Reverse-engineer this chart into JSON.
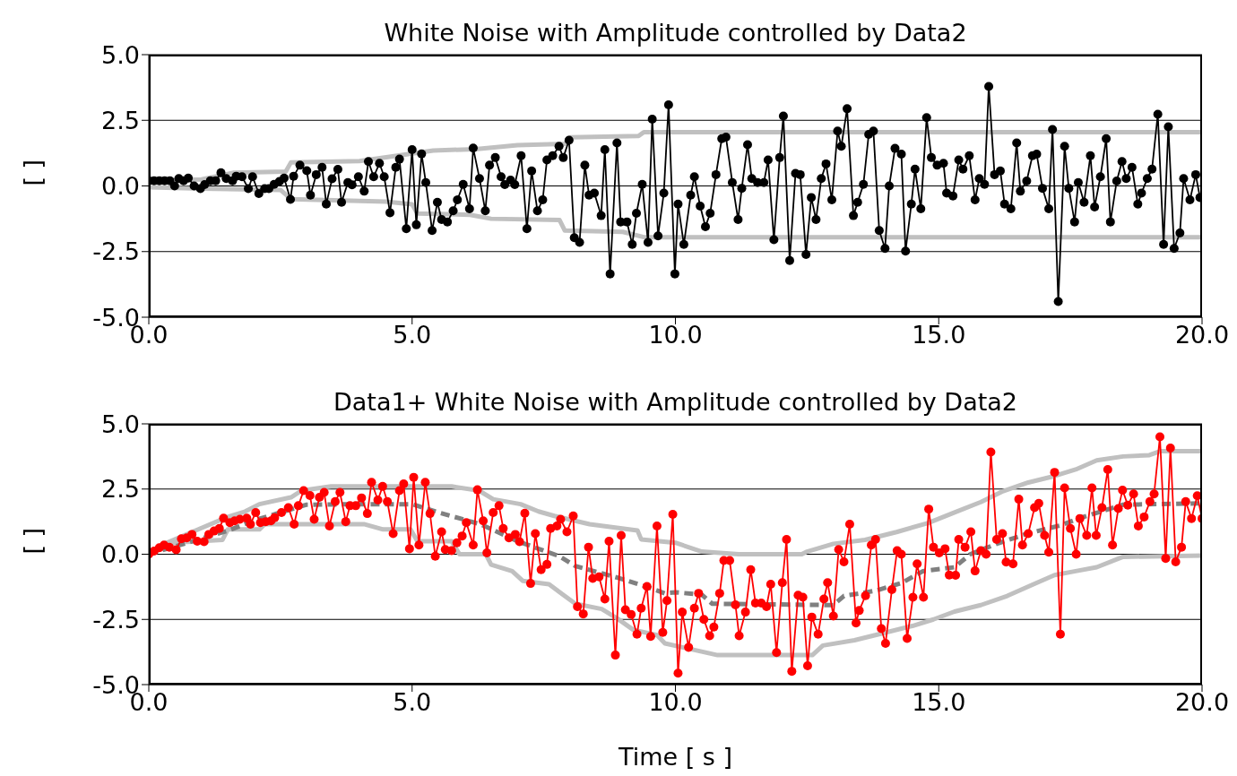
{
  "chart_data": [
    {
      "type": "line",
      "title": "White Noise with Amplitude controlled by Data2",
      "ylabel": "[ ]",
      "xlim": [
        0,
        20
      ],
      "xticks": [
        {
          "value": 0,
          "label": "0.0"
        },
        {
          "value": 5,
          "label": "5.0"
        },
        {
          "value": 10,
          "label": "10.0"
        },
        {
          "value": 15,
          "label": "15.0"
        },
        {
          "value": 20,
          "label": "20.0"
        }
      ],
      "ylim": [
        -5,
        5
      ],
      "yticks": [
        {
          "value": -5,
          "label": "-5.0"
        },
        {
          "value": -2.5,
          "label": "-2.5"
        },
        {
          "value": 0,
          "label": "0.0"
        },
        {
          "value": 2.5,
          "label": "2.5"
        },
        {
          "value": 5,
          "label": "5.0"
        }
      ],
      "grid": "y",
      "series": [
        {
          "color": "#c0c0c0",
          "marker": "none",
          "line_style": "solid",
          "x": [
            0,
            1.0,
            1.6,
            2.6,
            2.7,
            4.0,
            5.4,
            6.2,
            7.0,
            7.9,
            8.0,
            9.3,
            9.4,
            20
          ],
          "values": [
            0.2,
            0.25,
            0.5,
            0.55,
            0.9,
            0.95,
            1.35,
            1.4,
            1.55,
            1.6,
            1.85,
            1.9,
            2.05,
            2.05
          ]
        },
        {
          "color": "#c0c0c0",
          "marker": "none",
          "line_style": "solid",
          "x": [
            0,
            1.0,
            2.5,
            2.7,
            4.5,
            5.0,
            5.1,
            6.1,
            6.5,
            7.8,
            7.9,
            9.0,
            9.4,
            20
          ],
          "values": [
            -0.05,
            -0.1,
            -0.15,
            -0.5,
            -0.6,
            -0.7,
            -1.05,
            -1.1,
            -1.25,
            -1.3,
            -1.7,
            -1.75,
            -1.95,
            -1.95
          ]
        },
        {
          "color": "#000000",
          "marker": "circle",
          "line_style": "solid",
          "x": [
            0,
            0.1,
            0.2,
            0.3,
            0.4,
            0.49,
            0.57,
            0.66,
            0.75,
            0.86,
            0.98,
            1.06,
            1.17,
            1.27,
            1.37,
            1.47,
            1.59,
            1.66,
            1.77,
            1.89,
            1.97,
            2.09,
            2.2,
            2.28,
            2.38,
            2.48,
            2.57,
            2.69,
            2.75,
            2.87,
            3.0,
            3.07,
            3.18,
            3.29,
            3.37,
            3.48,
            3.59,
            3.66,
            3.78,
            3.86,
            3.98,
            4.09,
            4.17,
            4.27,
            4.38,
            4.47,
            4.58,
            4.69,
            4.76,
            4.89,
            5.0,
            5.08,
            5.18,
            5.26,
            5.38,
            5.48,
            5.56,
            5.67,
            5.78,
            5.86,
            5.97,
            6.09,
            6.16,
            6.28,
            6.39,
            6.47,
            6.58,
            6.69,
            6.76,
            6.87,
            6.95,
            7.07,
            7.18,
            7.27,
            7.38,
            7.48,
            7.56,
            7.67,
            7.79,
            7.87,
            7.98,
            8.08,
            8.18,
            8.28,
            8.36,
            8.46,
            8.59,
            8.66,
            8.76,
            8.89,
            8.96,
            9.08,
            9.18,
            9.26,
            9.37,
            9.48,
            9.56,
            9.67,
            9.78,
            9.87,
            9.99,
            10.05,
            10.16,
            10.29,
            10.36,
            10.47,
            10.57,
            10.66,
            10.77,
            10.88,
            10.96,
            11.08,
            11.19,
            11.26,
            11.37,
            11.45,
            11.56,
            11.68,
            11.76,
            11.87,
            11.98,
            12.05,
            12.17,
            12.28,
            12.37,
            12.48,
            12.58,
            12.67,
            12.77,
            12.86,
            12.97,
            13.08,
            13.15,
            13.26,
            13.38,
            13.46,
            13.57,
            13.67,
            13.76,
            13.87,
            13.98,
            14.06,
            14.17,
            14.29,
            14.37,
            14.48,
            14.55,
            14.66,
            14.77,
            14.86,
            14.97,
            15.09,
            15.15,
            15.27,
            15.38,
            15.46,
            15.58,
            15.69,
            15.77,
            15.87,
            15.95,
            16.06,
            16.17,
            16.25,
            16.37,
            16.48,
            16.55,
            16.67,
            16.78,
            16.86,
            16.97,
            17.09,
            17.16,
            17.27,
            17.39,
            17.47,
            17.58,
            17.65,
            17.76,
            17.88,
            17.96,
            18.07,
            18.18,
            18.26,
            18.38,
            18.48,
            18.56,
            18.67,
            18.78,
            18.85,
            18.96,
            19.05,
            19.16,
            19.27,
            19.36,
            19.47,
            19.58,
            19.65,
            19.77,
            19.88,
            19.96
          ],
          "values": [
            0.2,
            0.2,
            0.2,
            0.2,
            0.2,
            0.0,
            0.28,
            0.2,
            0.3,
            0.0,
            -0.1,
            0.05,
            0.2,
            0.2,
            0.5,
            0.28,
            0.2,
            0.37,
            0.35,
            -0.1,
            0.35,
            -0.29,
            -0.1,
            -0.1,
            0.06,
            0.17,
            0.3,
            -0.51,
            0.37,
            0.79,
            0.58,
            -0.35,
            0.43,
            0.71,
            -0.69,
            0.27,
            0.63,
            -0.62,
            0.13,
            0.04,
            0.35,
            -0.2,
            0.93,
            0.35,
            0.86,
            0.35,
            -1.02,
            0.71,
            1.02,
            -1.63,
            1.38,
            -1.48,
            1.22,
            0.13,
            -1.7,
            -0.62,
            -1.28,
            -1.37,
            -0.95,
            -0.53,
            0.06,
            -0.87,
            1.44,
            0.28,
            -0.95,
            0.79,
            1.08,
            0.35,
            0.05,
            0.22,
            0.05,
            1.15,
            -1.63,
            0.57,
            -0.95,
            -0.53,
            0.99,
            1.15,
            1.51,
            1.08,
            1.74,
            -1.97,
            -2.15,
            0.79,
            -0.35,
            -0.27,
            -1.13,
            1.38,
            -3.35,
            1.64,
            -1.37,
            -1.37,
            -2.23,
            -1.04,
            0.06,
            -2.15,
            2.54,
            -1.9,
            -0.27,
            3.09,
            -3.35,
            -0.69,
            -2.23,
            -0.35,
            0.35,
            -0.77,
            -1.55,
            -1.04,
            0.43,
            1.8,
            1.86,
            0.13,
            -1.28,
            -0.09,
            1.57,
            0.28,
            0.13,
            0.13,
            0.99,
            -2.05,
            1.08,
            2.66,
            -2.84,
            0.48,
            0.43,
            -2.61,
            -0.44,
            -1.28,
            0.28,
            0.84,
            -0.53,
            2.09,
            1.51,
            2.94,
            -1.13,
            -0.62,
            0.06,
            1.96,
            2.09,
            -1.7,
            -2.38,
            0.0,
            1.43,
            1.21,
            -2.48,
            -0.69,
            0.64,
            -0.87,
            2.6,
            1.08,
            0.79,
            0.86,
            -0.27,
            -0.38,
            0.99,
            0.64,
            1.15,
            -0.53,
            0.28,
            0.06,
            3.79,
            0.43,
            0.57,
            -0.69,
            -0.87,
            1.64,
            -0.2,
            0.19,
            1.15,
            1.21,
            -0.09,
            -0.87,
            2.15,
            -4.4,
            1.51,
            -0.09,
            -1.37,
            0.13,
            -0.62,
            1.15,
            -0.8,
            0.35,
            1.8,
            -1.37,
            0.19,
            0.93,
            0.28,
            0.71,
            -0.69,
            -0.27,
            0.28,
            0.64,
            2.73,
            -2.23,
            2.25,
            -2.38,
            -1.79,
            0.28,
            -0.53,
            0.43,
            -0.44
          ]
        }
      ]
    },
    {
      "type": "line",
      "title": "Data1+ White Noise with Amplitude controlled by Data2",
      "xlabel": "Time [ s ]",
      "ylabel": "[ ]",
      "xlim": [
        0,
        20
      ],
      "xticks": [
        {
          "value": 0,
          "label": "0.0"
        },
        {
          "value": 5,
          "label": "5.0"
        },
        {
          "value": 10,
          "label": "10.0"
        },
        {
          "value": 15,
          "label": "15.0"
        },
        {
          "value": 20,
          "label": "20.0"
        }
      ],
      "ylim": [
        -5,
        5
      ],
      "yticks": [
        {
          "value": -5,
          "label": "-5.0"
        },
        {
          "value": -2.5,
          "label": "-2.5"
        },
        {
          "value": 0,
          "label": "0.0"
        },
        {
          "value": 2.5,
          "label": "2.5"
        },
        {
          "value": 5,
          "label": "5.0"
        }
      ],
      "grid": "y",
      "series": [
        {
          "color": "#c0c0c0",
          "marker": "none",
          "line_style": "solid",
          "x": [
            0,
            0.26,
            0.98,
            1.5,
            1.83,
            2.1,
            2.7,
            2.9,
            3.46,
            5.75,
            6.27,
            6.54,
            7.06,
            7.4,
            7.7,
            8.37,
            9.28,
            9.35,
            10.0,
            10.5,
            11.2,
            12.4,
            12.5,
            13.0,
            13.6,
            14.2,
            14.8,
            15.3,
            15.8,
            16.2,
            16.7,
            17.2,
            17.6,
            18.0,
            18.5,
            19.0,
            19.2,
            20
          ],
          "values": [
            0,
            0.37,
            0.99,
            1.43,
            1.64,
            1.92,
            2.18,
            2.44,
            2.6,
            2.6,
            2.44,
            2.11,
            1.92,
            1.64,
            1.47,
            1.15,
            0.91,
            0.57,
            0.44,
            0.1,
            0,
            0,
            0.1,
            0.4,
            0.55,
            0.85,
            1.2,
            1.6,
            2.0,
            2.4,
            2.75,
            3.0,
            3.25,
            3.6,
            3.75,
            3.8,
            3.95,
            3.95
          ]
        },
        {
          "color": "#c0c0c0",
          "marker": "none",
          "line_style": "solid",
          "x": [
            0,
            0.3,
            0.5,
            1.4,
            1.5,
            2.1,
            2.2,
            4.1,
            4.45,
            4.97,
            5.1,
            5.75,
            5.9,
            6.4,
            6.5,
            6.9,
            7.1,
            7.6,
            7.85,
            8.1,
            8.6,
            8.9,
            9.2,
            9.65,
            9.8,
            10.8,
            12.6,
            12.8,
            13.4,
            13.9,
            14.5,
            14.9,
            15.3,
            15.8,
            16.3,
            16.8,
            17.2,
            17.6,
            18.0,
            18.5,
            20
          ],
          "values": [
            0,
            0.25,
            0.45,
            0.55,
            0.95,
            0.95,
            1.15,
            1.15,
            0.95,
            0.95,
            0.5,
            0.5,
            0.0,
            0.0,
            -0.4,
            -0.65,
            -1.02,
            -1.15,
            -1.53,
            -1.9,
            -2.1,
            -2.47,
            -2.9,
            -3.1,
            -3.42,
            -3.87,
            -3.87,
            -3.5,
            -3.3,
            -3.05,
            -2.75,
            -2.5,
            -2.2,
            -1.95,
            -1.6,
            -1.15,
            -0.8,
            -0.65,
            -0.5,
            -0.1,
            -0.05
          ]
        },
        {
          "color": "#808080",
          "marker": "none",
          "line_style": "dashed",
          "x": [
            0,
            0.5,
            1.0,
            1.5,
            2.0,
            2.5,
            3.0,
            4.0,
            5.0,
            5.5,
            6.3,
            7.0,
            7.8,
            8.1,
            8.9,
            9.5,
            9.8,
            10.0,
            10.5,
            10.7,
            13.0,
            13.2,
            13.8,
            14.3,
            14.7,
            15.3,
            15.6,
            16.1,
            16.7,
            17.3,
            17.7,
            18.1,
            18.5,
            20
          ],
          "values": [
            0,
            0.3,
            0.6,
            0.9,
            1.3,
            1.6,
            1.9,
            1.92,
            1.92,
            1.6,
            1.15,
            0.5,
            -0.08,
            -0.45,
            -0.9,
            -1.28,
            -1.5,
            -1.46,
            -1.55,
            -1.9,
            -1.95,
            -1.6,
            -1.4,
            -1.1,
            -0.65,
            -0.5,
            0.0,
            0.4,
            0.8,
            1.1,
            1.4,
            1.65,
            1.9,
            1.95
          ]
        },
        {
          "color": "#ff0000",
          "marker": "circle",
          "line_style": "solid",
          "x": [
            0,
            0.1,
            0.2,
            0.29,
            0.39,
            0.52,
            0.62,
            0.72,
            0.82,
            0.92,
            1.05,
            1.14,
            1.24,
            1.34,
            1.42,
            1.54,
            1.63,
            1.73,
            1.86,
            1.93,
            2.03,
            2.12,
            2.22,
            2.32,
            2.39,
            2.52,
            2.65,
            2.76,
            2.84,
            2.94,
            3.06,
            3.14,
            3.24,
            3.33,
            3.43,
            3.54,
            3.63,
            3.74,
            3.82,
            3.93,
            4.04,
            4.15,
            4.23,
            4.35,
            4.44,
            4.53,
            4.64,
            4.76,
            4.84,
            4.95,
            5.03,
            5.13,
            5.25,
            5.34,
            5.44,
            5.56,
            5.63,
            5.75,
            5.85,
            5.95,
            6.03,
            6.16,
            6.24,
            6.35,
            6.42,
            6.54,
            6.65,
            6.73,
            6.84,
            6.96,
            7.04,
            7.14,
            7.25,
            7.34,
            7.45,
            7.56,
            7.63,
            7.75,
            7.82,
            7.94,
            8.06,
            8.14,
            8.25,
            8.35,
            8.43,
            8.55,
            8.66,
            8.74,
            8.86,
            8.97,
            9.05,
            9.16,
            9.27,
            9.35,
            9.46,
            9.53,
            9.65,
            9.76,
            9.84,
            9.95,
            10.05,
            10.13,
            10.25,
            10.36,
            10.44,
            10.54,
            10.65,
            10.73,
            10.84,
            10.92,
            11.03,
            11.14,
            11.21,
            11.33,
            11.43,
            11.52,
            11.63,
            11.73,
            11.81,
            11.92,
            12.03,
            12.11,
            12.21,
            12.33,
            12.42,
            12.51,
            12.59,
            12.71,
            12.82,
            12.89,
            13.0,
            13.1,
            13.2,
            13.31,
            13.43,
            13.49,
            13.61,
            13.72,
            13.8,
            13.91,
            13.99,
            14.11,
            14.21,
            14.29,
            14.4,
            14.51,
            14.59,
            14.71,
            14.81,
            14.9,
            15.01,
            15.12,
            15.2,
            15.32,
            15.38,
            15.5,
            15.61,
            15.69,
            15.8,
            15.9,
            15.99,
            16.1,
            16.21,
            16.28,
            16.41,
            16.52,
            16.59,
            16.7,
            16.82,
            16.9,
            17.01,
            17.09,
            17.2,
            17.31,
            17.39,
            17.5,
            17.61,
            17.68,
            17.81,
            17.91,
            17.99,
            18.1,
            18.21,
            18.3,
            18.41,
            18.49,
            18.59,
            18.7,
            18.79,
            18.9,
            19.01,
            19.09,
            19.2,
            19.31,
            19.4,
            19.5,
            19.61,
            19.69,
            19.8,
            19.91,
            20.0
          ],
          "values": [
            0,
            0.12,
            0.25,
            0.35,
            0.27,
            0.17,
            0.59,
            0.63,
            0.76,
            0.5,
            0.48,
            0.76,
            0.89,
            0.99,
            1.38,
            1.21,
            1.28,
            1.34,
            1.38,
            1.15,
            1.6,
            1.21,
            1.25,
            1.28,
            1.4,
            1.6,
            1.79,
            1.15,
            1.86,
            2.44,
            2.25,
            1.34,
            2.18,
            2.37,
            1.08,
            2.02,
            2.37,
            1.25,
            1.86,
            1.86,
            2.16,
            1.56,
            2.76,
            2.08,
            2.6,
            2.02,
            0.79,
            2.44,
            2.7,
            0.21,
            2.95,
            0.35,
            2.76,
            1.56,
            -0.08,
            0.86,
            0.18,
            0.14,
            0.44,
            0.7,
            1.21,
            0.35,
            2.47,
            1.28,
            0.05,
            1.6,
            1.86,
            0.99,
            0.63,
            0.76,
            0.48,
            1.57,
            -1.12,
            0.79,
            -0.59,
            -0.39,
            0.99,
            1.08,
            1.34,
            0.86,
            1.47,
            -2.01,
            -2.29,
            0.27,
            -0.93,
            -0.87,
            -1.72,
            0.5,
            -3.87,
            0.72,
            -2.13,
            -2.31,
            -3.07,
            -2.07,
            -1.24,
            -3.15,
            1.08,
            -3.0,
            -1.78,
            1.53,
            -4.56,
            -2.22,
            -3.57,
            -2.07,
            -1.5,
            -2.5,
            -3.13,
            -2.79,
            -1.5,
            -0.24,
            -0.24,
            -1.94,
            -3.13,
            -2.22,
            -0.59,
            -1.87,
            -1.87,
            -2.01,
            -1.15,
            -3.77,
            -1.09,
            0.57,
            -4.49,
            -1.57,
            -1.65,
            -4.28,
            -2.41,
            -3.07,
            -1.72,
            -1.09,
            -2.37,
            0.18,
            -0.29,
            1.15,
            -2.64,
            -2.16,
            -1.59,
            0.35,
            0.57,
            -2.85,
            -3.42,
            -1.36,
            0.14,
            0.0,
            -3.23,
            -1.65,
            -0.37,
            -1.65,
            1.73,
            0.27,
            0.05,
            0.21,
            -0.8,
            -0.81,
            0.57,
            0.27,
            0.86,
            -0.64,
            0.14,
            0.0,
            3.92,
            0.57,
            0.79,
            -0.3,
            -0.37,
            2.11,
            0.35,
            0.79,
            1.79,
            1.95,
            0.72,
            0.08,
            3.14,
            -3.07,
            2.54,
            0.99,
            0.0,
            1.37,
            0.72,
            2.54,
            0.72,
            1.79,
            3.25,
            0.35,
            1.75,
            2.46,
            1.88,
            2.31,
            1.08,
            1.43,
            2.02,
            2.31,
            4.5,
            -0.16,
            4.07,
            -0.29,
            0.27,
            2.02,
            1.37,
            2.24,
            1.37
          ]
        }
      ]
    }
  ]
}
